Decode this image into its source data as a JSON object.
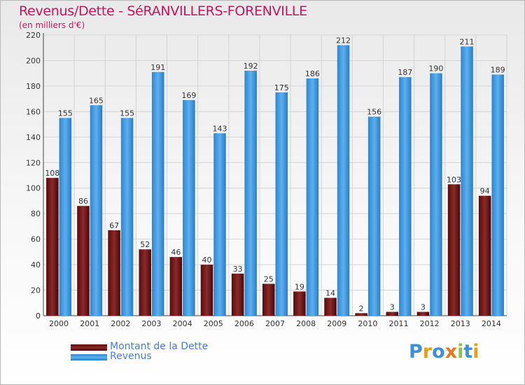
{
  "chart_data": {
    "type": "bar",
    "title": "Revenus/Dette - SéRANVILLERS-FORENVILLE",
    "subtitle": "(en milliers d'€)",
    "categories": [
      "2000",
      "2001",
      "2002",
      "2003",
      "2004",
      "2005",
      "2006",
      "2007",
      "2008",
      "2009",
      "2010",
      "2011",
      "2012",
      "2013",
      "2014"
    ],
    "series": [
      {
        "name": "Montant de la Dette",
        "color": "#7a1c1c",
        "values": [
          108,
          86,
          67,
          52,
          46,
          40,
          33,
          25,
          19,
          14,
          2,
          3,
          3,
          103,
          94
        ]
      },
      {
        "name": "Revenus",
        "color": "#3d9be3",
        "values": [
          155,
          165,
          155,
          191,
          169,
          143,
          192,
          175,
          186,
          212,
          156,
          187,
          190,
          211,
          189
        ]
      }
    ],
    "ylim": [
      0,
      220
    ],
    "yticks": [
      0,
      20,
      40,
      60,
      80,
      100,
      120,
      140,
      160,
      180,
      200,
      220
    ],
    "grid": true,
    "legend_position": "bottom-left"
  },
  "brand": {
    "logo_text": "Proxiti",
    "logo_letter_colors": [
      "#3d8fd8",
      "#e6a117",
      "#3d8fd8",
      "#e87722",
      "#8bc34a",
      "#3d8fd8",
      "#e6a117"
    ]
  }
}
